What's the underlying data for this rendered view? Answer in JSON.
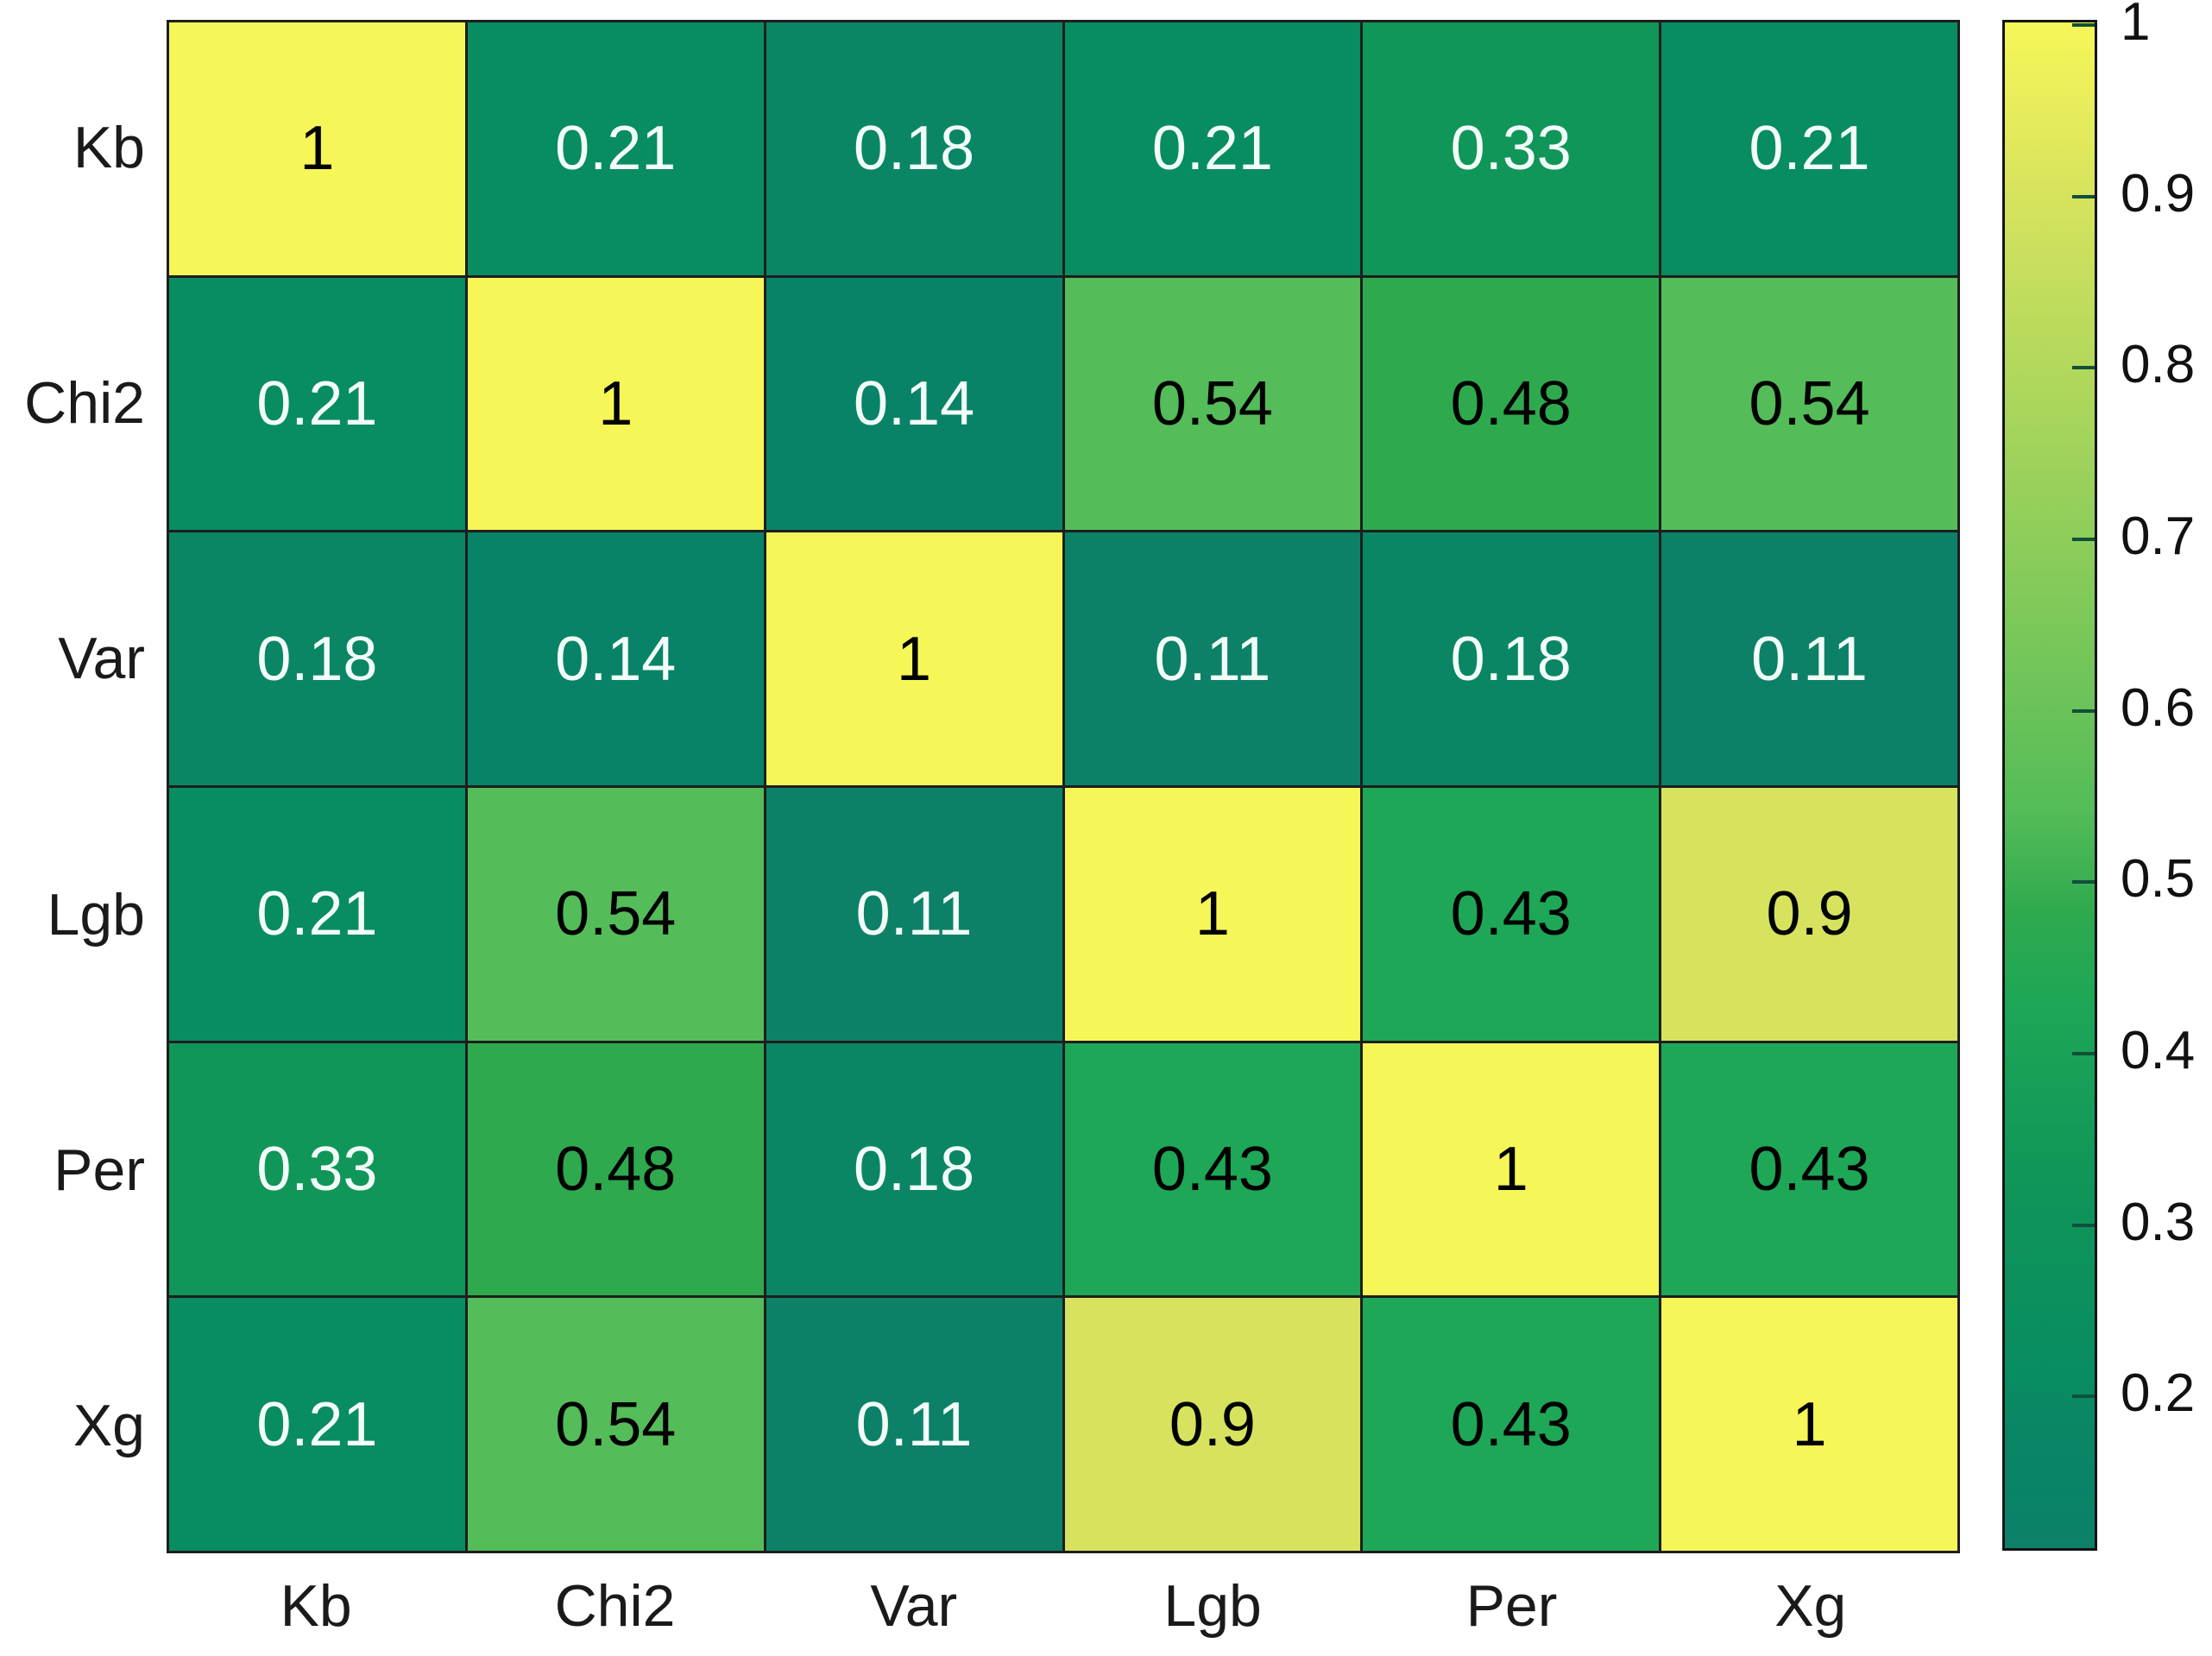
{
  "figure": {
    "background": "#ffffff",
    "kind": "correlation-heatmap"
  },
  "chart_data": {
    "type": "heatmap",
    "title": "",
    "xlabel": "",
    "ylabel": "",
    "x_categories": [
      "Kb",
      "Chi2",
      "Var",
      "Lgb",
      "Per",
      "Xg"
    ],
    "y_categories": [
      "Kb",
      "Chi2",
      "Var",
      "Lgb",
      "Per",
      "Xg"
    ],
    "matrix": [
      [
        1,
        0.21,
        0.18,
        0.21,
        0.33,
        0.21
      ],
      [
        0.21,
        1,
        0.14,
        0.54,
        0.48,
        0.54
      ],
      [
        0.18,
        0.14,
        1,
        0.11,
        0.18,
        0.11
      ],
      [
        0.21,
        0.54,
        0.11,
        1,
        0.43,
        0.9
      ],
      [
        0.33,
        0.48,
        0.18,
        0.43,
        1,
        0.43
      ],
      [
        0.21,
        0.54,
        0.11,
        0.9,
        0.43,
        1
      ]
    ],
    "value_range": [
      0.11,
      1
    ],
    "grid_on": true,
    "grid_color": "#1e1e1e",
    "legend_position": "right-colorbar",
    "colorbar": {
      "ticks": [
        1,
        0.9,
        0.8,
        0.7,
        0.6,
        0.5,
        0.4,
        0.3,
        0.2
      ],
      "min": 0.11,
      "max": 1
    },
    "value_colors": {
      "1": "#f6f658",
      "0.9": "#d7e35e",
      "0.54": "#54bc58",
      "0.48": "#2fa94e",
      "0.43": "#1ea757",
      "0.33": "#109658",
      "0.21": "#088c62",
      "0.18": "#0a8665",
      "0.14": "#098367",
      "0.11": "#0c8168"
    },
    "colormap_stops": [
      {
        "v": 0.11,
        "c": "#0c8168"
      },
      {
        "v": 0.14,
        "c": "#098367"
      },
      {
        "v": 0.18,
        "c": "#0a8665"
      },
      {
        "v": 0.21,
        "c": "#088c62"
      },
      {
        "v": 0.33,
        "c": "#109658"
      },
      {
        "v": 0.43,
        "c": "#1ea757"
      },
      {
        "v": 0.48,
        "c": "#2fa94e"
      },
      {
        "v": 0.54,
        "c": "#54bc58"
      },
      {
        "v": 0.9,
        "c": "#d7e35e"
      },
      {
        "v": 1.0,
        "c": "#f6f658"
      }
    ],
    "text_color_threshold": 0.4,
    "cell_text_dark": "#000000",
    "cell_text_light": "#f2fdf8"
  }
}
